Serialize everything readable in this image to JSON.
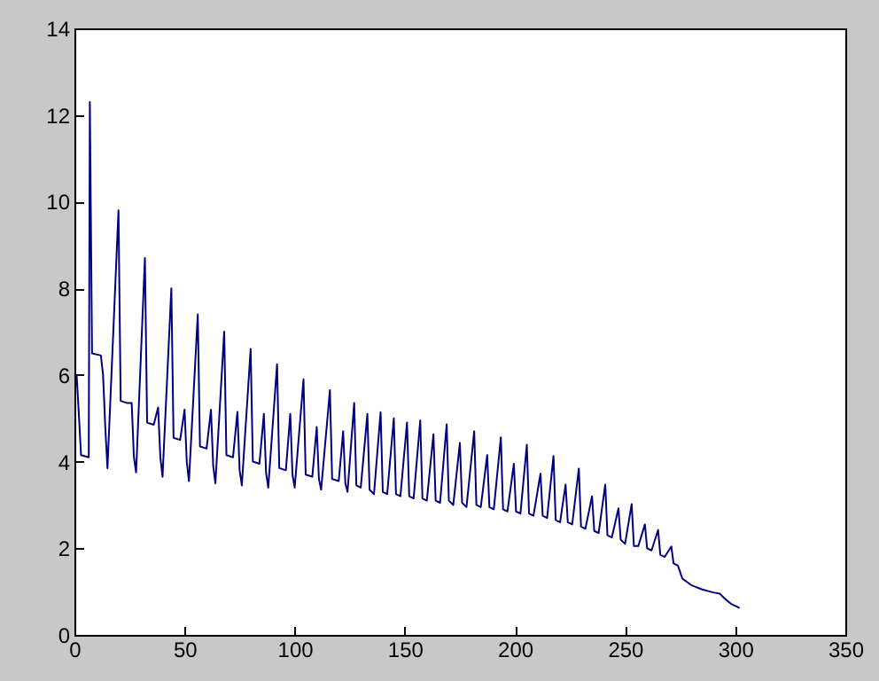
{
  "chart_data": {
    "type": "line",
    "x": [
      1,
      2,
      3,
      6.5,
      7,
      8,
      12,
      13,
      14,
      15,
      20,
      21,
      24,
      26,
      27,
      28,
      32,
      33,
      36,
      38,
      39,
      40,
      44,
      45,
      48,
      50,
      51,
      52,
      56,
      57,
      60,
      62,
      63,
      64,
      68,
      69,
      72,
      74,
      75,
      76,
      80,
      81,
      84,
      86,
      87,
      88,
      92,
      93,
      96,
      98,
      99,
      100,
      104,
      105,
      108,
      110,
      111,
      112,
      116,
      117,
      120,
      122,
      123,
      124,
      127,
      128,
      130,
      133,
      134,
      136,
      139,
      140,
      142,
      145,
      146,
      148,
      151,
      152,
      154,
      157,
      158,
      160,
      163,
      164,
      166,
      169,
      170,
      172,
      175,
      176,
      178,
      181.5,
      182.5,
      184.5,
      187.4,
      188.4,
      190.4,
      193.6,
      194.6,
      196.6,
      199.5,
      200.5,
      202.5,
      205.4,
      206.4,
      208.4,
      211.6,
      212.6,
      214.6,
      217.5,
      218.5,
      220.5,
      223,
      224,
      226,
      229,
      230,
      232,
      235,
      236,
      238,
      241,
      242,
      244,
      247,
      248,
      250,
      253,
      254,
      256,
      259,
      260,
      262,
      265,
      266,
      268,
      271,
      272,
      274,
      276,
      280,
      285,
      290,
      293,
      295,
      298,
      302
    ],
    "values": [
      6.0,
      5.1,
      4.15,
      4.1,
      12.3,
      6.5,
      6.45,
      6.0,
      4.8,
      3.85,
      9.8,
      5.4,
      5.35,
      5.35,
      4.1,
      3.75,
      8.7,
      4.9,
      4.85,
      5.25,
      4.1,
      3.65,
      8.0,
      4.55,
      4.5,
      5.2,
      4.0,
      3.55,
      7.4,
      4.35,
      4.3,
      5.2,
      3.9,
      3.5,
      7.0,
      4.15,
      4.1,
      5.15,
      3.8,
      3.45,
      6.6,
      4.0,
      3.95,
      5.1,
      3.75,
      3.4,
      6.25,
      3.85,
      3.8,
      5.1,
      3.7,
      3.4,
      5.9,
      3.7,
      3.65,
      4.8,
      3.6,
      3.35,
      5.65,
      3.6,
      3.55,
      4.7,
      3.5,
      3.3,
      5.35,
      3.45,
      3.4,
      5.1,
      3.35,
      3.25,
      5.14,
      3.3,
      3.25,
      5.0,
      3.25,
      3.2,
      4.9,
      3.2,
      3.15,
      4.95,
      3.15,
      3.1,
      4.63,
      3.1,
      3.05,
      4.86,
      3.1,
      3.0,
      4.43,
      3.05,
      2.95,
      4.7,
      3.0,
      2.95,
      4.15,
      2.95,
      2.9,
      4.56,
      2.9,
      2.85,
      3.95,
      2.85,
      2.8,
      4.39,
      2.8,
      2.75,
      3.72,
      2.75,
      2.7,
      4.13,
      2.65,
      2.6,
      3.47,
      2.6,
      2.55,
      3.84,
      2.5,
      2.45,
      3.2,
      2.4,
      2.35,
      3.47,
      2.3,
      2.25,
      2.92,
      2.2,
      2.1,
      3.02,
      2.05,
      2.05,
      2.55,
      2.0,
      1.95,
      2.42,
      1.85,
      1.8,
      2.04,
      1.65,
      1.6,
      1.3,
      1.15,
      1.05,
      0.98,
      0.95,
      0.85,
      0.72,
      0.62
    ],
    "color": "#00007f",
    "xlim": [
      0,
      350
    ],
    "xticks": [
      0,
      50,
      100,
      150,
      200,
      250,
      300,
      350
    ],
    "ylim": [
      0,
      14
    ],
    "yticks": [
      0,
      2,
      4,
      6,
      8,
      10,
      12,
      14
    ]
  }
}
